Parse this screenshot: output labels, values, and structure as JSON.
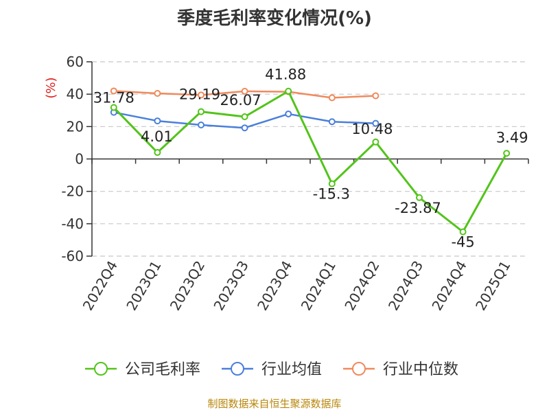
{
  "chart_data": {
    "type": "line",
    "title": "季度毛利率变化情况(%)",
    "ylabel": "(%)",
    "categories": [
      "2022Q4",
      "2023Q1",
      "2023Q2",
      "2023Q3",
      "2023Q4",
      "2024Q1",
      "2024Q2",
      "2024Q3",
      "2024Q4",
      "2025Q1"
    ],
    "ylim": [
      -60,
      60
    ],
    "yticks": [
      60,
      40,
      20,
      0,
      -20,
      -40,
      -60
    ],
    "grid": true,
    "legend_position": "bottom",
    "series": [
      {
        "name": "公司毛利率",
        "color": "#52c41a",
        "values": [
          31.78,
          4.01,
          29.19,
          26.07,
          41.88,
          -15.3,
          10.48,
          -23.87,
          -45,
          3.49
        ],
        "labels": [
          "31.78",
          "4.01",
          "29.19",
          "26.07",
          "41.88",
          "-15.3",
          "10.48",
          "-23.87",
          "-45",
          "3.49"
        ]
      },
      {
        "name": "行业均值",
        "color": "#4a7fdc",
        "values": [
          28.8,
          23.5,
          21.0,
          19.2,
          27.8,
          23.0,
          22.0,
          null,
          null,
          null
        ]
      },
      {
        "name": "行业中位数",
        "color": "#f08a5d",
        "values": [
          42.0,
          40.5,
          39.5,
          41.8,
          41.5,
          37.8,
          39.0,
          null,
          null,
          null
        ]
      }
    ]
  },
  "source": "制图数据来自恒生聚源数据库"
}
